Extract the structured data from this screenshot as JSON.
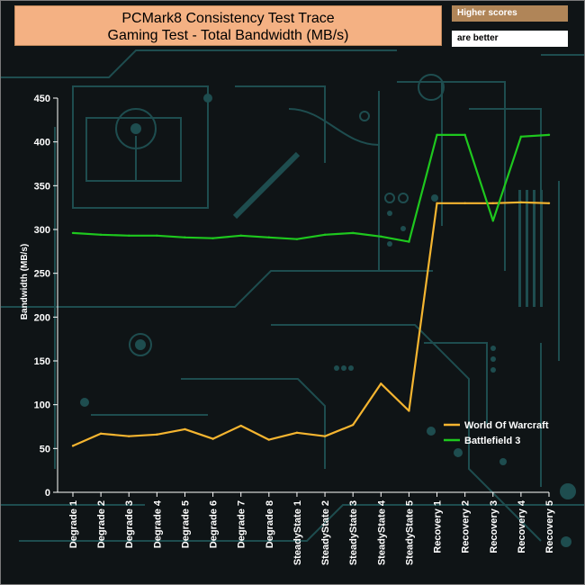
{
  "header": {
    "title_line1": "PCMark8 Consistency Test Trace",
    "title_line2": "Gaming Test - Total Bandwidth (MB/s)",
    "note_top": "Higher scores",
    "note_bottom": "are better"
  },
  "colors": {
    "background": "#0f1416",
    "circuit": "#1e4d4f",
    "world_of_warcraft": "#f5b530",
    "battlefield_3": "#1ec81e",
    "axis": "#ffffff"
  },
  "chart_data": {
    "type": "line",
    "title": "PCMark8 Consistency Test Trace Gaming Test - Total Bandwidth (MB/s)",
    "xlabel": "",
    "ylabel": "Bandwidth (MB/s)",
    "ylim": [
      0,
      450
    ],
    "yticks": [
      0,
      50,
      100,
      150,
      200,
      250,
      300,
      350,
      400,
      450
    ],
    "grid": false,
    "legend_position": "bottom-right",
    "categories": [
      "Degrade 1",
      "Degrade 2",
      "Degrade 3",
      "Degrade 4",
      "Degrade 5",
      "Degrade 6",
      "Degrade 7",
      "Degrade 8",
      "SteadyState 1",
      "SteadyState 2",
      "SteadyState 3",
      "SteadyState 4",
      "SteadyState 5",
      "Recovery 1",
      "Recovery 2",
      "Recovery 3",
      "Recovery 4",
      "Recovery 5"
    ],
    "series": [
      {
        "name": "World Of Warcraft",
        "color": "#f5b530",
        "values": [
          53,
          67,
          64,
          66,
          72,
          61,
          76,
          60,
          68,
          64,
          77,
          124,
          93,
          330,
          330,
          330,
          331,
          330
        ]
      },
      {
        "name": "Battlefield 3",
        "color": "#1ec81e",
        "values": [
          296,
          294,
          293,
          293,
          291,
          290,
          293,
          291,
          289,
          294,
          296,
          292,
          286,
          408,
          408,
          310,
          406,
          408
        ]
      }
    ]
  }
}
